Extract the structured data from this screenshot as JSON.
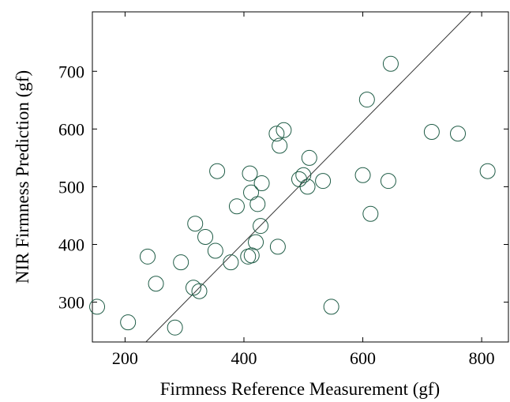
{
  "chart_data": {
    "type": "scatter",
    "xlabel": "Firmness Reference Measurement (gf)",
    "ylabel": "NIR Firmness Prediction (gf)",
    "xlim": [
      145,
      845
    ],
    "ylim": [
      231,
      803
    ],
    "xticks": [
      200,
      400,
      600,
      800
    ],
    "yticks": [
      300,
      400,
      500,
      600,
      700
    ],
    "grid": false,
    "marker": "open-circle",
    "marker_color": "#1f5c46",
    "line_color": "#333333",
    "reference_line": {
      "from": [
        235,
        231
      ],
      "to": [
        782,
        803
      ]
    },
    "points": [
      {
        "x": 153,
        "y": 292
      },
      {
        "x": 205,
        "y": 265
      },
      {
        "x": 238,
        "y": 379
      },
      {
        "x": 252,
        "y": 332
      },
      {
        "x": 284,
        "y": 256
      },
      {
        "x": 294,
        "y": 369
      },
      {
        "x": 315,
        "y": 325
      },
      {
        "x": 318,
        "y": 436
      },
      {
        "x": 325,
        "y": 319
      },
      {
        "x": 335,
        "y": 413
      },
      {
        "x": 352,
        "y": 389
      },
      {
        "x": 355,
        "y": 527
      },
      {
        "x": 378,
        "y": 369
      },
      {
        "x": 388,
        "y": 466
      },
      {
        "x": 407,
        "y": 379
      },
      {
        "x": 410,
        "y": 523
      },
      {
        "x": 412,
        "y": 490
      },
      {
        "x": 413,
        "y": 381
      },
      {
        "x": 420,
        "y": 404
      },
      {
        "x": 423,
        "y": 470
      },
      {
        "x": 428,
        "y": 432
      },
      {
        "x": 430,
        "y": 506
      },
      {
        "x": 455,
        "y": 592
      },
      {
        "x": 457,
        "y": 396
      },
      {
        "x": 460,
        "y": 571
      },
      {
        "x": 467,
        "y": 598
      },
      {
        "x": 493,
        "y": 513
      },
      {
        "x": 500,
        "y": 520
      },
      {
        "x": 507,
        "y": 500
      },
      {
        "x": 510,
        "y": 550
      },
      {
        "x": 533,
        "y": 510
      },
      {
        "x": 547,
        "y": 292
      },
      {
        "x": 600,
        "y": 520
      },
      {
        "x": 607,
        "y": 651
      },
      {
        "x": 613,
        "y": 453
      },
      {
        "x": 643,
        "y": 510
      },
      {
        "x": 647,
        "y": 713
      },
      {
        "x": 716,
        "y": 595
      },
      {
        "x": 760,
        "y": 592
      },
      {
        "x": 810,
        "y": 527
      }
    ]
  }
}
